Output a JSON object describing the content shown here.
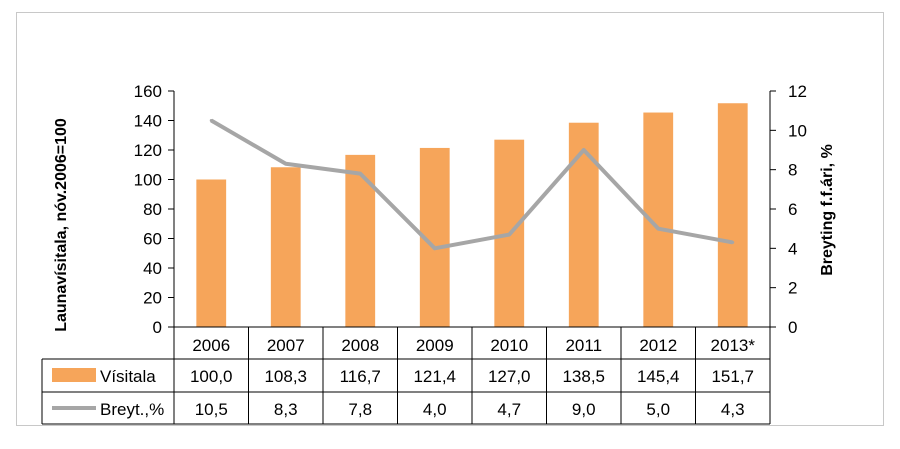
{
  "chart_data": {
    "type": "bar",
    "categories": [
      "2006",
      "2007",
      "2008",
      "2009",
      "2010",
      "2011",
      "2012",
      "2013*"
    ],
    "series": [
      {
        "name": "Vísitala",
        "type": "bar",
        "axis": "left",
        "values": [
          100.0,
          108.3,
          116.7,
          121.4,
          127.0,
          138.5,
          145.4,
          151.7
        ],
        "labels": [
          "100,0",
          "108,3",
          "116,7",
          "121,4",
          "127,0",
          "138,5",
          "145,4",
          "151,7"
        ],
        "color": "#f6a55a"
      },
      {
        "name": "Breyt.,%",
        "type": "line",
        "axis": "right",
        "values": [
          10.5,
          8.3,
          7.8,
          4.0,
          4.7,
          9.0,
          5.0,
          4.3
        ],
        "labels": [
          "10,5",
          "8,3",
          "7,8",
          "4,0",
          "4,7",
          "9,0",
          "5,0",
          "4,3"
        ],
        "color": "#a6a6a6"
      }
    ],
    "ylabel": "Launavísitala, nóv.2006=100",
    "ylabel_right": "Breyting f.f.ári, %",
    "ylim": [
      0,
      160
    ],
    "yticks": [
      0,
      20,
      40,
      60,
      80,
      100,
      120,
      140,
      160
    ],
    "ylim_right": [
      0,
      12
    ],
    "yticks_right": [
      0,
      2,
      4,
      6,
      8,
      10,
      12
    ],
    "grid": false,
    "legend": "data-table-bottom"
  }
}
